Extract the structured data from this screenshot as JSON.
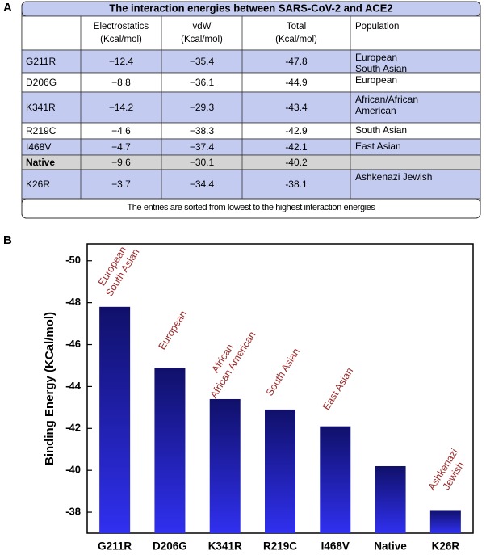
{
  "panels": [
    "A",
    "B"
  ],
  "table": {
    "title": "The interaction energies between SARS-CoV-2 and ACE2",
    "header": [
      [
        "Electrostatics",
        "(Kcal/mol)"
      ],
      [
        "vdW",
        "(Kcal/mol)"
      ],
      [
        "Total",
        "(Kcal/mol)"
      ],
      [
        "Population"
      ]
    ],
    "rows": [
      {
        "mutant": "G211R",
        "electrostatics": "−12.4",
        "vdw": "−35.4",
        "total": "-47.8",
        "population": [
          "European",
          "South Asian"
        ]
      },
      {
        "mutant": "D206G",
        "electrostatics": "−8.8",
        "vdw": "−36.1",
        "total": "-44.9",
        "population": [
          "European"
        ]
      },
      {
        "mutant": "K341R",
        "electrostatics": "−14.2",
        "vdw": "−29.3",
        "total": "-43.4",
        "population": [
          "African/African",
          "American"
        ]
      },
      {
        "mutant": "R219C",
        "electrostatics": "−4.6",
        "vdw": "−38.3",
        "total": "-42.9",
        "population": [
          "South Asian"
        ]
      },
      {
        "mutant": "I468V",
        "electrostatics": "−4.7",
        "vdw": "−37.4",
        "total": "-42.1",
        "population": [
          "East Asian"
        ]
      },
      {
        "mutant": "Native",
        "electrostatics": "−9.6",
        "vdw": "−30.1",
        "total": "-40.2",
        "population": []
      },
      {
        "mutant": "K26R",
        "electrostatics": "−3.7",
        "vdw": "−34.4",
        "total": "-38.1",
        "population": [
          "Ashkenazi Jewish"
        ]
      }
    ],
    "footer": "The entries are sorted from lowest to the highest interaction energies"
  },
  "chart_data": {
    "type": "bar",
    "y_label": "Binding Energy (KCal/mol)",
    "categories": [
      "G211R",
      "D206G",
      "K341R",
      "R219C",
      "I468V",
      "Native",
      "K26R"
    ],
    "values": [
      -47.8,
      -44.9,
      -43.4,
      -42.9,
      -42.1,
      -40.2,
      -38.1
    ],
    "annotations": [
      [
        "European",
        "South Asian"
      ],
      [
        "European"
      ],
      [
        "African",
        "African American"
      ],
      [
        "South Asian"
      ],
      [
        "East Asian"
      ],
      null,
      [
        "Ashkenazi",
        "Jewish"
      ]
    ],
    "color": "#3030f0",
    "ylim": [
      -37,
      -50.8
    ],
    "yticks": [
      -38,
      -40,
      -42,
      -44,
      -46,
      -48,
      -50
    ]
  }
}
